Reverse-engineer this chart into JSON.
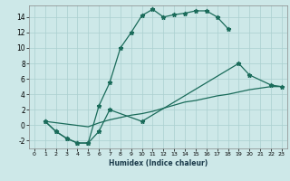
{
  "bg_color": "#cde8e8",
  "grid_color": "#aacfcf",
  "line_color": "#1a6b5a",
  "xlabel": "Humidex (Indice chaleur)",
  "xlim": [
    -0.5,
    23.5
  ],
  "ylim": [
    -3,
    15.5
  ],
  "xticks": [
    0,
    1,
    2,
    3,
    4,
    5,
    6,
    7,
    8,
    9,
    10,
    11,
    12,
    13,
    14,
    15,
    16,
    17,
    18,
    19,
    20,
    21,
    22,
    23
  ],
  "yticks": [
    -2,
    0,
    2,
    4,
    6,
    8,
    10,
    12,
    14
  ],
  "line1_x": [
    1,
    2,
    3,
    4,
    5,
    6,
    7,
    8,
    9,
    10,
    11,
    12,
    13,
    14,
    15,
    16,
    17,
    18
  ],
  "line1_y": [
    0.5,
    -0.8,
    -1.7,
    -2.3,
    -2.3,
    2.5,
    5.5,
    10.0,
    12.0,
    14.2,
    15.0,
    14.0,
    14.3,
    14.5,
    14.8,
    14.8,
    14.0,
    12.5
  ],
  "line2_x": [
    1,
    2,
    3,
    4,
    5,
    6,
    7,
    10,
    19,
    20,
    22,
    23
  ],
  "line2_y": [
    0.5,
    -0.8,
    -1.7,
    -2.3,
    -2.3,
    -0.8,
    2.0,
    0.5,
    8.0,
    6.5,
    5.2,
    5.0
  ],
  "line3_x": [
    1,
    5,
    6,
    7,
    8,
    9,
    10,
    11,
    12,
    13,
    14,
    15,
    16,
    17,
    18,
    19,
    20,
    21,
    22,
    23
  ],
  "line3_y": [
    0.5,
    -0.2,
    0.3,
    0.7,
    1.0,
    1.3,
    1.5,
    1.8,
    2.2,
    2.6,
    3.0,
    3.2,
    3.5,
    3.8,
    4.0,
    4.3,
    4.6,
    4.8,
    5.0,
    5.0
  ]
}
